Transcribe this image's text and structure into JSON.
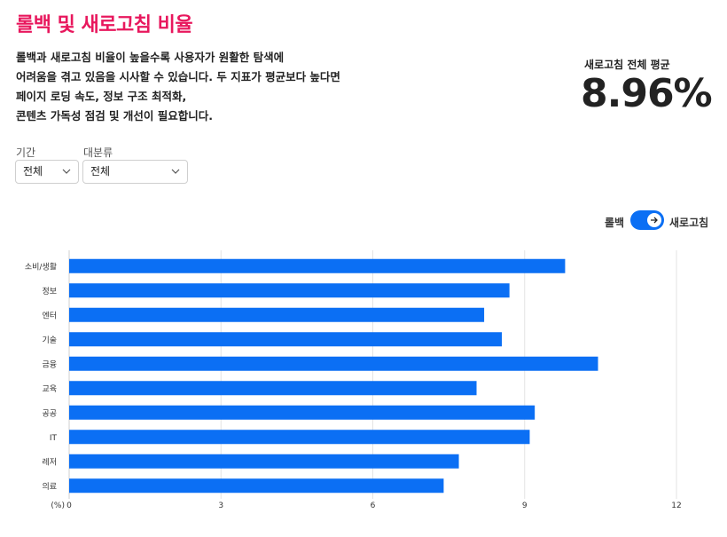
{
  "header": {
    "title": "롤백 및 새로고침 비율",
    "description_lines": [
      "롤백과 새로고침 비율이 높을수록 사용자가 원활한 탐색에",
      "어려움을 겪고 있음을 시사할 수 있습니다. 두 지표가 평균보다 높다면",
      "페이지 로딩 속도, 정보 구조 최적화,",
      "콘텐츠 가독성 점검 및 개선이 필요합니다."
    ]
  },
  "summary": {
    "label": "새로고침 전체 평균",
    "value": "8.96%"
  },
  "filters": {
    "period": {
      "label": "기간",
      "selected": "전체"
    },
    "category": {
      "label": "대분류",
      "selected": "전체"
    }
  },
  "toggle": {
    "left_label": "롤백",
    "right_label": "새로고침",
    "state": "새로고침"
  },
  "colors": {
    "accent": "#e8175d",
    "bar": "#0b6ff4"
  },
  "chart_data": {
    "type": "bar",
    "orientation": "horizontal",
    "categories": [
      "소비/생활",
      "정보",
      "엔터",
      "기술",
      "금융",
      "교육",
      "공공",
      "IT",
      "레저",
      "의료"
    ],
    "values": [
      9.8,
      8.7,
      8.2,
      8.55,
      10.45,
      8.05,
      9.2,
      9.1,
      7.7,
      7.4
    ],
    "xlim": [
      0,
      12
    ],
    "xticks": [
      0,
      3,
      6,
      9,
      12
    ],
    "unit_label": "(%)",
    "grid": true
  }
}
